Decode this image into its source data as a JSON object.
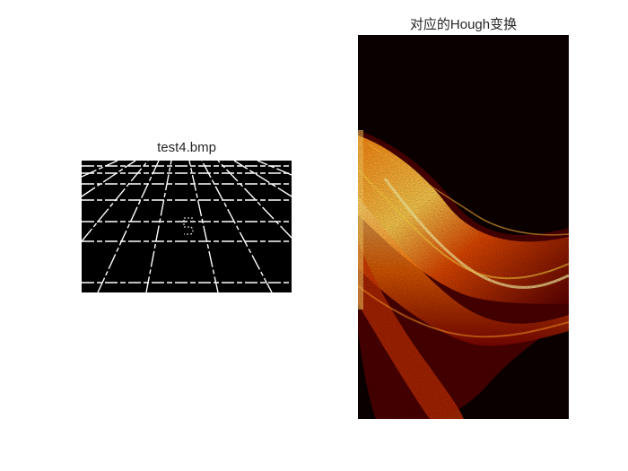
{
  "figure": {
    "left_panel": {
      "title": "test4.bmp"
    },
    "right_panel": {
      "title": "对应的Hough变换"
    },
    "colors": {
      "background": "#ffffff",
      "left_image_background": "#000000",
      "left_image_lines": "#ffffff",
      "right_image_background": "#0a0000",
      "hough_low": "#3a0000",
      "hough_mid": "#d03000",
      "hough_high": "#ffe070"
    }
  }
}
